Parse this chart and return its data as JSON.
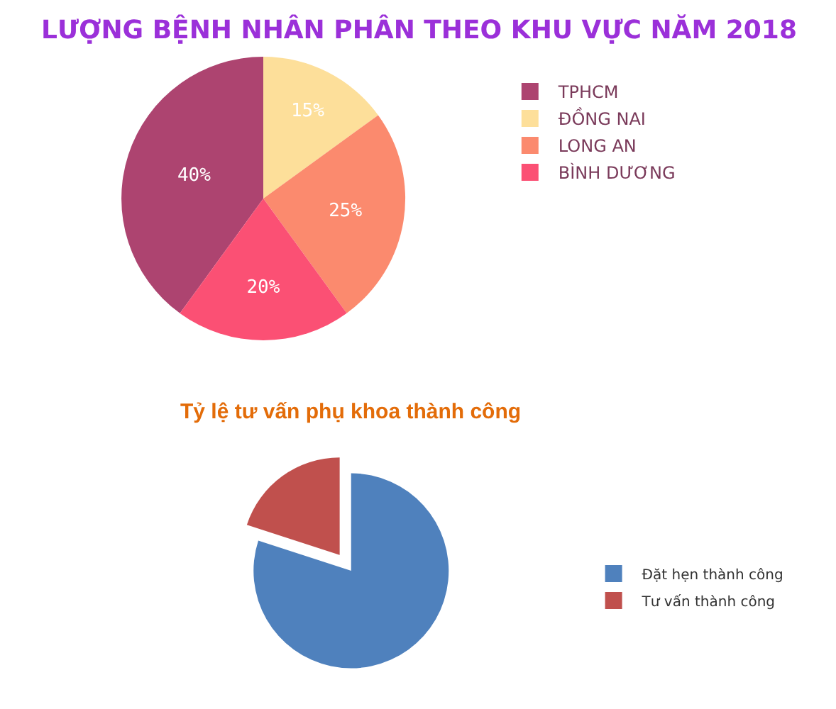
{
  "chart_data": [
    {
      "type": "pie",
      "title": "LƯỢNG BỆNH NHÂN PHÂN THEO KHU VỰC NĂM 2018",
      "categories": [
        "TPHCM",
        "ĐỒNG NAI",
        "LONG AN",
        "BÌNH DƯƠNG"
      ],
      "values": [
        40,
        15,
        25,
        20
      ],
      "colors": [
        "#ad4470",
        "#fddf9a",
        "#fb8a6e",
        "#fb5074"
      ],
      "value_labels": [
        "40%",
        "15%",
        "25%",
        "20%"
      ],
      "legend": "right"
    },
    {
      "type": "pie",
      "title": "Tỷ lệ tư vấn phụ khoa thành công",
      "categories": [
        "Đặt hẹn thành công",
        "Tư vấn thành công"
      ],
      "values": [
        80,
        20
      ],
      "colors": [
        "#4f81bd",
        "#c0504d"
      ],
      "legend": "right"
    }
  ]
}
